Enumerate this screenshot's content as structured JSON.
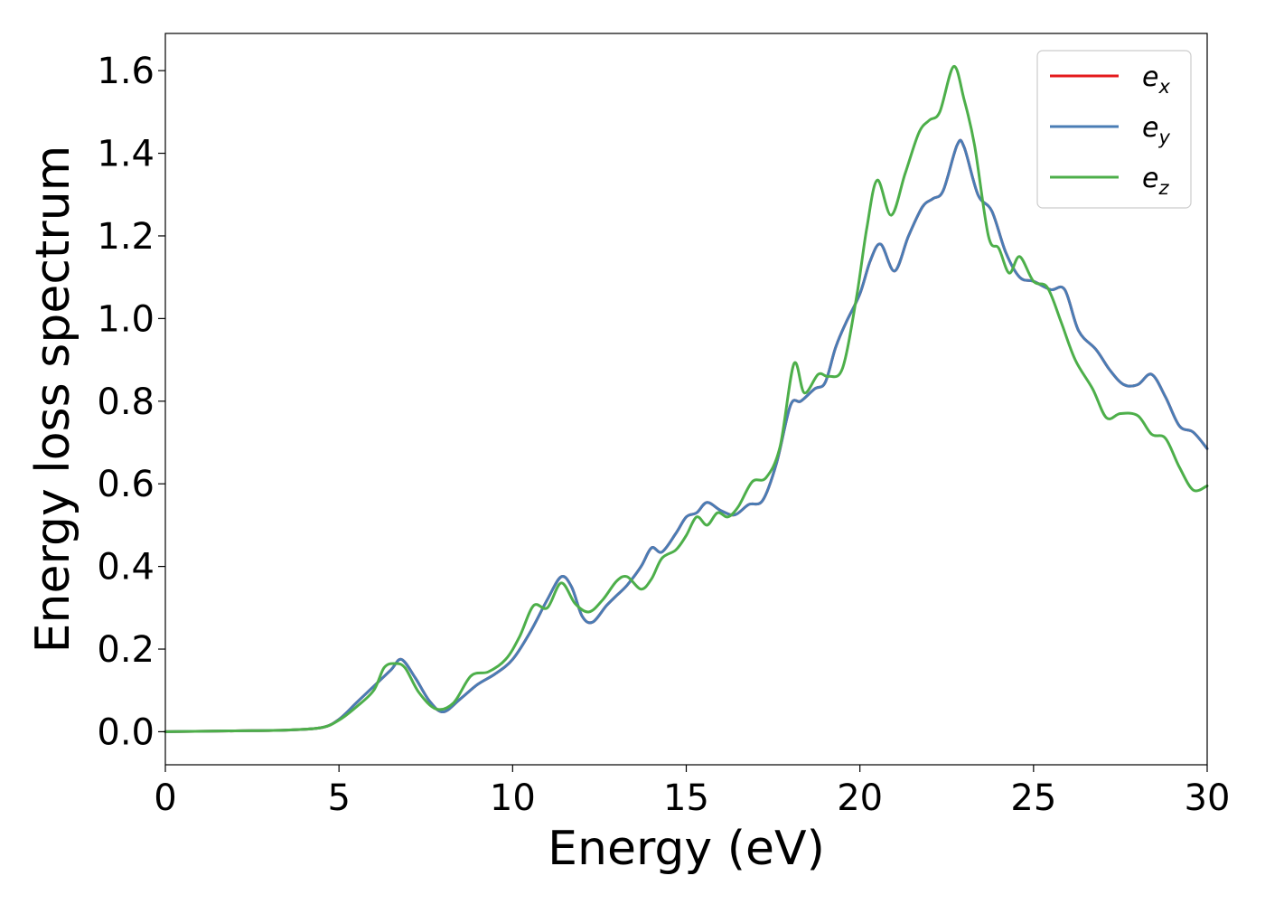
{
  "chart_data": {
    "type": "line",
    "title": "",
    "xlabel": "Energy (eV)",
    "ylabel": "Energy loss spectrum",
    "xlim": [
      0,
      30
    ],
    "ylim": [
      -0.08,
      1.69
    ],
    "xticks": [
      0,
      5,
      10,
      15,
      20,
      25,
      30
    ],
    "xtick_labels": [
      "0",
      "5",
      "10",
      "15",
      "20",
      "25",
      "30"
    ],
    "yticks": [
      0.0,
      0.2,
      0.4,
      0.6,
      0.8,
      1.0,
      1.2,
      1.4,
      1.6
    ],
    "ytick_labels": [
      "0.0",
      "0.2",
      "0.4",
      "0.6",
      "0.8",
      "1.0",
      "1.2",
      "1.4",
      "1.6"
    ],
    "grid": false,
    "legend_position": "top-right",
    "series": [
      {
        "name": "e_x",
        "legend_main": "e",
        "legend_sub": "x",
        "color": "#e41a1c",
        "x": [
          0,
          2,
          3.5,
          4.5,
          5,
          5.5,
          6,
          6.5,
          6.8,
          7.2,
          7.6,
          8,
          8.5,
          9,
          9.5,
          10,
          10.5,
          11,
          11.4,
          11.7,
          12,
          12.3,
          12.7,
          13,
          13.3,
          13.7,
          14,
          14.3,
          14.7,
          15,
          15.3,
          15.6,
          16,
          16.4,
          16.8,
          17.2,
          17.6,
          18,
          18.3,
          18.7,
          19,
          19.3,
          19.6,
          20,
          20.3,
          20.6,
          21,
          21.4,
          21.8,
          22.1,
          22.4,
          22.8,
          23,
          23.4,
          23.8,
          24.2,
          24.6,
          25,
          25.5,
          25.9,
          26.3,
          26.8,
          27.2,
          27.6,
          28,
          28.4,
          28.8,
          29.2,
          29.6,
          30
        ],
        "values": [
          0.0,
          0.002,
          0.004,
          0.01,
          0.03,
          0.07,
          0.11,
          0.15,
          0.175,
          0.13,
          0.075,
          0.048,
          0.08,
          0.115,
          0.14,
          0.175,
          0.24,
          0.32,
          0.375,
          0.35,
          0.28,
          0.265,
          0.305,
          0.33,
          0.355,
          0.4,
          0.445,
          0.435,
          0.48,
          0.52,
          0.53,
          0.555,
          0.535,
          0.525,
          0.55,
          0.56,
          0.65,
          0.79,
          0.8,
          0.83,
          0.845,
          0.93,
          0.99,
          1.06,
          1.14,
          1.18,
          1.115,
          1.2,
          1.27,
          1.29,
          1.31,
          1.42,
          1.415,
          1.3,
          1.26,
          1.16,
          1.1,
          1.09,
          1.07,
          1.07,
          0.97,
          0.925,
          0.875,
          0.84,
          0.84,
          0.865,
          0.81,
          0.74,
          0.725,
          0.685
        ]
      },
      {
        "name": "e_y",
        "legend_main": "e",
        "legend_sub": "y",
        "color": "#4a7db5",
        "x": [
          0,
          2,
          3.5,
          4.5,
          5,
          5.5,
          6,
          6.5,
          6.8,
          7.2,
          7.6,
          8,
          8.5,
          9,
          9.5,
          10,
          10.5,
          11,
          11.4,
          11.7,
          12,
          12.3,
          12.7,
          13,
          13.3,
          13.7,
          14,
          14.3,
          14.7,
          15,
          15.3,
          15.6,
          16,
          16.4,
          16.8,
          17.2,
          17.6,
          18,
          18.3,
          18.7,
          19,
          19.3,
          19.6,
          20,
          20.3,
          20.6,
          21,
          21.4,
          21.8,
          22.1,
          22.4,
          22.8,
          23,
          23.4,
          23.8,
          24.2,
          24.6,
          25,
          25.5,
          25.9,
          26.3,
          26.8,
          27.2,
          27.6,
          28,
          28.4,
          28.8,
          29.2,
          29.6,
          30
        ],
        "values": [
          0.0,
          0.002,
          0.004,
          0.01,
          0.03,
          0.07,
          0.11,
          0.15,
          0.175,
          0.13,
          0.075,
          0.048,
          0.08,
          0.115,
          0.14,
          0.175,
          0.24,
          0.32,
          0.375,
          0.35,
          0.28,
          0.265,
          0.305,
          0.33,
          0.355,
          0.4,
          0.445,
          0.435,
          0.48,
          0.52,
          0.53,
          0.555,
          0.535,
          0.525,
          0.55,
          0.56,
          0.65,
          0.79,
          0.8,
          0.83,
          0.845,
          0.93,
          0.99,
          1.06,
          1.14,
          1.18,
          1.115,
          1.2,
          1.27,
          1.29,
          1.31,
          1.42,
          1.415,
          1.3,
          1.26,
          1.16,
          1.1,
          1.09,
          1.07,
          1.07,
          0.97,
          0.925,
          0.875,
          0.84,
          0.84,
          0.865,
          0.81,
          0.74,
          0.725,
          0.685
        ]
      },
      {
        "name": "e_z",
        "legend_main": "e",
        "legend_sub": "z",
        "color": "#4daf4a",
        "x": [
          0,
          2,
          3.5,
          4.5,
          5,
          5.5,
          6,
          6.3,
          6.6,
          6.9,
          7.3,
          7.8,
          8.3,
          8.8,
          9.3,
          9.8,
          10.2,
          10.6,
          11,
          11.4,
          11.8,
          12.2,
          12.6,
          13,
          13.3,
          13.7,
          14,
          14.3,
          14.7,
          15,
          15.3,
          15.6,
          15.9,
          16.2,
          16.5,
          16.9,
          17.3,
          17.7,
          18.1,
          18.4,
          18.8,
          19.1,
          19.5,
          19.9,
          20.2,
          20.5,
          20.9,
          21.3,
          21.7,
          22,
          22.3,
          22.7,
          23,
          23.3,
          23.7,
          24,
          24.3,
          24.6,
          25,
          25.4,
          25.8,
          26.2,
          26.7,
          27.1,
          27.5,
          28,
          28.4,
          28.8,
          29.2,
          29.6,
          30
        ],
        "values": [
          0.0,
          0.002,
          0.004,
          0.01,
          0.028,
          0.06,
          0.1,
          0.155,
          0.165,
          0.155,
          0.095,
          0.055,
          0.07,
          0.135,
          0.145,
          0.175,
          0.23,
          0.305,
          0.3,
          0.36,
          0.31,
          0.29,
          0.32,
          0.365,
          0.375,
          0.345,
          0.37,
          0.42,
          0.44,
          0.475,
          0.52,
          0.5,
          0.53,
          0.52,
          0.545,
          0.605,
          0.615,
          0.69,
          0.89,
          0.82,
          0.865,
          0.86,
          0.88,
          1.05,
          1.22,
          1.335,
          1.25,
          1.35,
          1.45,
          1.48,
          1.5,
          1.61,
          1.53,
          1.42,
          1.2,
          1.17,
          1.11,
          1.15,
          1.09,
          1.075,
          0.99,
          0.9,
          0.83,
          0.76,
          0.77,
          0.765,
          0.72,
          0.71,
          0.64,
          0.585,
          0.595
        ]
      }
    ]
  }
}
